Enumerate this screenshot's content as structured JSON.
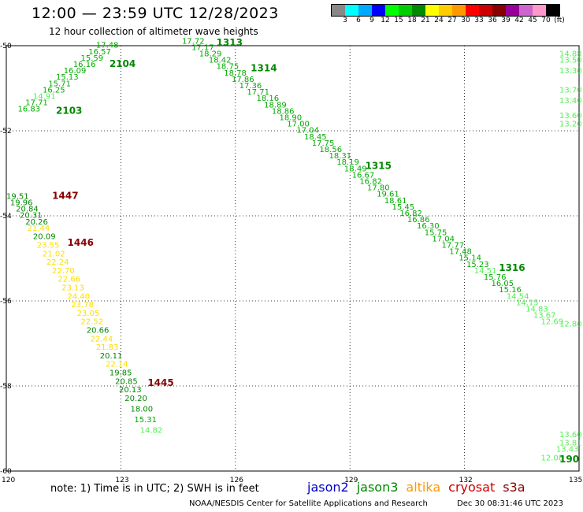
{
  "header": {
    "title": "12:00 — 23:59 UTC 12/28/2023",
    "subtitle": "12 hour collection of altimeter wave heights"
  },
  "legend": {
    "labels": [
      "3",
      "6",
      "9",
      "12",
      "15",
      "18",
      "21",
      "24",
      "27",
      "30",
      "33",
      "36",
      "39",
      "42",
      "45",
      "70",
      "(ft)"
    ],
    "colors": [
      "#888888",
      "#00ffff",
      "#00aaff",
      "#0000ff",
      "#00ff00",
      "#00cc00",
      "#008800",
      "#ffff00",
      "#ffcc00",
      "#ff9900",
      "#ff0000",
      "#cc0000",
      "#880000",
      "#990099",
      "#cc66cc",
      "#ff99cc",
      "#000000"
    ]
  },
  "footer": {
    "note": "note:  1) Time is in UTC;  2) SWH is in feet",
    "satellites": [
      {
        "name": "jason2",
        "color": "#0000cc"
      },
      {
        "name": "jason3",
        "color": "#008800"
      },
      {
        "name": "altika",
        "color": "#ff9900"
      },
      {
        "name": "cryosat",
        "color": "#cc0000"
      },
      {
        "name": "s3a",
        "color": "#880000"
      }
    ],
    "credit": "NOAA/NESDIS Center for Satellite Applications and Research",
    "timestamp": "Dec 30 08:31:46 UTC 2023"
  },
  "chart_data": {
    "type": "scatter",
    "xlim": [
      120,
      135
    ],
    "ylim": [
      -60,
      -50
    ],
    "x_ticks": [
      120,
      123,
      126,
      129,
      132,
      135
    ],
    "y_ticks": [
      -50,
      -52,
      -54,
      -56,
      -58,
      -60
    ],
    "grid": true,
    "pass_labels": [
      {
        "label": "2103",
        "lon": 121.3,
        "lat": -51.6,
        "color": "#008800"
      },
      {
        "label": "2104",
        "lon": 122.7,
        "lat": -50.5,
        "color": "#008800"
      },
      {
        "label": "1313",
        "lon": 125.5,
        "lat": -50.0,
        "color": "#008800"
      },
      {
        "label": "1314",
        "lon": 126.4,
        "lat": -50.6,
        "color": "#008800"
      },
      {
        "label": "1315",
        "lon": 129.4,
        "lat": -52.9,
        "color": "#008800"
      },
      {
        "label": "1316",
        "lon": 132.9,
        "lat": -55.3,
        "color": "#008800"
      },
      {
        "label": "1447",
        "lon": 121.2,
        "lat": -53.6,
        "color": "#880000"
      },
      {
        "label": "1446",
        "lon": 121.6,
        "lat": -54.7,
        "color": "#880000"
      },
      {
        "label": "1445",
        "lon": 123.7,
        "lat": -58.0,
        "color": "#880000"
      },
      {
        "label": "190",
        "lon": 134.7,
        "lat": -59.8,
        "color": "#008800"
      }
    ],
    "series": [
      {
        "name": "2103-2104",
        "points": [
          {
            "lon": 120.3,
            "lat": -51.55,
            "swh": 16.83,
            "color": "#00aa00"
          },
          {
            "lon": 120.5,
            "lat": -51.4,
            "swh": 17.71,
            "color": "#00aa00"
          },
          {
            "lon": 120.7,
            "lat": -51.25,
            "swh": 14.91,
            "color": "#55ee55"
          },
          {
            "lon": 120.95,
            "lat": -51.1,
            "swh": 16.25,
            "color": "#00aa00"
          },
          {
            "lon": 121.1,
            "lat": -50.95,
            "swh": 15.71,
            "color": "#00aa00"
          },
          {
            "lon": 121.3,
            "lat": -50.8,
            "swh": 15.13,
            "color": "#00aa00"
          },
          {
            "lon": 121.5,
            "lat": -50.65,
            "swh": 16.09,
            "color": "#00aa00"
          },
          {
            "lon": 121.75,
            "lat": -50.5,
            "swh": 16.16,
            "color": "#00aa00"
          },
          {
            "lon": 121.95,
            "lat": -50.35,
            "swh": 15.59,
            "color": "#00aa00"
          },
          {
            "lon": 122.15,
            "lat": -50.2,
            "swh": 16.57,
            "color": "#00aa00"
          },
          {
            "lon": 122.35,
            "lat": -50.05,
            "swh": 17.48,
            "color": "#00aa00"
          }
        ]
      },
      {
        "name": "1313-1316",
        "points": [
          {
            "lon": 124.6,
            "lat": -49.95,
            "swh": 17.72,
            "color": "#00aa00"
          },
          {
            "lon": 124.85,
            "lat": -50.1,
            "swh": 17.17,
            "color": "#00aa00"
          },
          {
            "lon": 125.05,
            "lat": -50.25,
            "swh": 18.29,
            "color": "#00aa00"
          },
          {
            "lon": 125.3,
            "lat": -50.4,
            "swh": 18.42,
            "color": "#00aa00"
          },
          {
            "lon": 125.5,
            "lat": -50.55,
            "swh": 18.75,
            "color": "#00aa00"
          },
          {
            "lon": 125.7,
            "lat": -50.7,
            "swh": 18.78,
            "color": "#00aa00"
          },
          {
            "lon": 125.9,
            "lat": -50.85,
            "swh": 17.86,
            "color": "#00aa00"
          },
          {
            "lon": 126.1,
            "lat": -51.0,
            "swh": 17.36,
            "color": "#00aa00"
          },
          {
            "lon": 126.3,
            "lat": -51.15,
            "swh": 17.71,
            "color": "#00aa00"
          },
          {
            "lon": 126.55,
            "lat": -51.3,
            "swh": 18.16,
            "color": "#00aa00"
          },
          {
            "lon": 126.75,
            "lat": -51.45,
            "swh": 18.89,
            "color": "#00aa00"
          },
          {
            "lon": 126.95,
            "lat": -51.6,
            "swh": 18.86,
            "color": "#00aa00"
          },
          {
            "lon": 127.15,
            "lat": -51.75,
            "swh": 18.9,
            "color": "#00aa00"
          },
          {
            "lon": 127.35,
            "lat": -51.9,
            "swh": 17.0,
            "color": "#00aa00"
          },
          {
            "lon": 127.6,
            "lat": -52.05,
            "swh": 17.04,
            "color": "#00aa00"
          },
          {
            "lon": 127.8,
            "lat": -52.2,
            "swh": 18.45,
            "color": "#00aa00"
          },
          {
            "lon": 128.0,
            "lat": -52.35,
            "swh": 17.75,
            "color": "#00aa00"
          },
          {
            "lon": 128.2,
            "lat": -52.5,
            "swh": 18.56,
            "color": "#00aa00"
          },
          {
            "lon": 128.45,
            "lat": -52.65,
            "swh": 18.31,
            "color": "#00aa00"
          },
          {
            "lon": 128.65,
            "lat": -52.8,
            "swh": 18.19,
            "color": "#00aa00"
          },
          {
            "lon": 128.85,
            "lat": -52.95,
            "swh": 18.49,
            "color": "#00aa00"
          },
          {
            "lon": 129.05,
            "lat": -53.1,
            "swh": 16.67,
            "color": "#00aa00"
          },
          {
            "lon": 129.25,
            "lat": -53.25,
            "swh": 16.82,
            "color": "#00aa00"
          },
          {
            "lon": 129.45,
            "lat": -53.4,
            "swh": 17.8,
            "color": "#00aa00"
          },
          {
            "lon": 129.7,
            "lat": -53.55,
            "swh": 19.61,
            "color": "#00aa00"
          },
          {
            "lon": 129.9,
            "lat": -53.7,
            "swh": 18.61,
            "color": "#00aa00"
          },
          {
            "lon": 130.1,
            "lat": -53.85,
            "swh": 15.45,
            "color": "#00aa00"
          },
          {
            "lon": 130.3,
            "lat": -54.0,
            "swh": 16.82,
            "color": "#00aa00"
          },
          {
            "lon": 130.5,
            "lat": -54.15,
            "swh": 16.86,
            "color": "#00aa00"
          },
          {
            "lon": 130.75,
            "lat": -54.3,
            "swh": 16.3,
            "color": "#00aa00"
          },
          {
            "lon": 130.95,
            "lat": -54.45,
            "swh": 15.75,
            "color": "#00aa00"
          },
          {
            "lon": 131.15,
            "lat": -54.6,
            "swh": 17.04,
            "color": "#00aa00"
          },
          {
            "lon": 131.4,
            "lat": -54.75,
            "swh": 17.77,
            "color": "#00aa00"
          },
          {
            "lon": 131.6,
            "lat": -54.9,
            "swh": 17.48,
            "color": "#00aa00"
          },
          {
            "lon": 131.85,
            "lat": -55.05,
            "swh": 15.14,
            "color": "#00aa00"
          },
          {
            "lon": 132.05,
            "lat": -55.2,
            "swh": 15.23,
            "color": "#00aa00"
          },
          {
            "lon": 132.25,
            "lat": -55.35,
            "swh": 14.51,
            "color": "#55ee55"
          },
          {
            "lon": 132.5,
            "lat": -55.5,
            "swh": 15.76,
            "color": "#00aa00"
          },
          {
            "lon": 132.7,
            "lat": -55.65,
            "swh": 16.05,
            "color": "#00aa00"
          },
          {
            "lon": 132.9,
            "lat": -55.8,
            "swh": 15.16,
            "color": "#00aa00"
          },
          {
            "lon": 133.1,
            "lat": -55.95,
            "swh": 14.54,
            "color": "#55ee55"
          },
          {
            "lon": 133.35,
            "lat": -56.1,
            "swh": 14.15,
            "color": "#55ee55"
          },
          {
            "lon": 133.6,
            "lat": -56.25,
            "swh": 14.83,
            "color": "#55ee55"
          },
          {
            "lon": 133.8,
            "lat": -56.4,
            "swh": 13.67,
            "color": "#55ee55"
          },
          {
            "lon": 134.0,
            "lat": -56.55,
            "swh": 12.69,
            "color": "#55ee55"
          }
        ]
      },
      {
        "name": "1445-1447",
        "points": [
          {
            "lon": 120.0,
            "lat": -53.6,
            "swh": 19.51,
            "color": "#008800"
          },
          {
            "lon": 120.1,
            "lat": -53.75,
            "swh": 19.96,
            "color": "#008800"
          },
          {
            "lon": 120.25,
            "lat": -53.9,
            "swh": 20.84,
            "color": "#008800"
          },
          {
            "lon": 120.35,
            "lat": -54.05,
            "swh": 20.31,
            "color": "#008800"
          },
          {
            "lon": 120.5,
            "lat": -54.2,
            "swh": 20.26,
            "color": "#008800"
          },
          {
            "lon": 120.55,
            "lat": -54.35,
            "swh": 21.44,
            "color": "#ffdd00"
          },
          {
            "lon": 120.7,
            "lat": -54.55,
            "swh": 20.09,
            "color": "#008800"
          },
          {
            "lon": 120.8,
            "lat": -54.75,
            "swh": 23.55,
            "color": "#ffdd00"
          },
          {
            "lon": 120.95,
            "lat": -54.95,
            "swh": 21.02,
            "color": "#ffdd00"
          },
          {
            "lon": 121.05,
            "lat": -55.15,
            "swh": 22.24,
            "color": "#ffdd00"
          },
          {
            "lon": 121.2,
            "lat": -55.35,
            "swh": 22.7,
            "color": "#ffdd00"
          },
          {
            "lon": 121.35,
            "lat": -55.55,
            "swh": 22.66,
            "color": "#ffdd00"
          },
          {
            "lon": 121.45,
            "lat": -55.75,
            "swh": 23.13,
            "color": "#ffdd00"
          },
          {
            "lon": 121.6,
            "lat": -55.95,
            "swh": 24.4,
            "color": "#ffdd00"
          },
          {
            "lon": 121.7,
            "lat": -56.15,
            "swh": 23.78,
            "color": "#ffdd00"
          },
          {
            "lon": 121.85,
            "lat": -56.35,
            "swh": 23.05,
            "color": "#ffdd00"
          },
          {
            "lon": 121.95,
            "lat": -56.55,
            "swh": 22.52,
            "color": "#ffdd00"
          },
          {
            "lon": 122.1,
            "lat": -56.75,
            "swh": 20.66,
            "color": "#008800"
          },
          {
            "lon": 122.2,
            "lat": -56.95,
            "swh": 22.44,
            "color": "#ffdd00"
          },
          {
            "lon": 122.35,
            "lat": -57.15,
            "swh": 21.83,
            "color": "#ffdd00"
          },
          {
            "lon": 122.45,
            "lat": -57.35,
            "swh": 20.11,
            "color": "#008800"
          },
          {
            "lon": 122.6,
            "lat": -57.55,
            "swh": 22.14,
            "color": "#ffdd00"
          },
          {
            "lon": 122.7,
            "lat": -57.75,
            "swh": 19.85,
            "color": "#008800"
          },
          {
            "lon": 122.85,
            "lat": -57.95,
            "swh": 20.85,
            "color": "#008800"
          },
          {
            "lon": 122.95,
            "lat": -58.15,
            "swh": 20.13,
            "color": "#008800"
          },
          {
            "lon": 123.1,
            "lat": -58.35,
            "swh": 20.2,
            "color": "#008800"
          },
          {
            "lon": 123.25,
            "lat": -58.6,
            "swh": 18.0,
            "color": "#008800"
          },
          {
            "lon": 123.35,
            "lat": -58.85,
            "swh": 15.31,
            "color": "#00aa00"
          },
          {
            "lon": 123.5,
            "lat": -59.1,
            "swh": 14.82,
            "color": "#55ee55"
          }
        ]
      },
      {
        "name": "edge-east",
        "points": [
          {
            "lon": 134.75,
            "lat": -50.25,
            "swh": 14.88,
            "color": "#55ee55"
          },
          {
            "lon": 134.85,
            "lat": -50.4,
            "swh": 13.5,
            "color": "#55ee55"
          },
          {
            "lon": 134.8,
            "lat": -50.65,
            "swh": 13.3,
            "color": "#55ee55"
          },
          {
            "lon": 134.85,
            "lat": -51.1,
            "swh": 13.7,
            "color": "#55ee55"
          },
          {
            "lon": 134.85,
            "lat": -51.35,
            "swh": 13.4,
            "color": "#55ee55"
          },
          {
            "lon": 134.85,
            "lat": -51.7,
            "swh": 13.6,
            "color": "#55ee55"
          },
          {
            "lon": 134.85,
            "lat": -51.9,
            "swh": 13.2,
            "color": "#55ee55"
          },
          {
            "lon": 134.8,
            "lat": -56.6,
            "swh": 12.8,
            "color": "#55ee55"
          },
          {
            "lon": 134.6,
            "lat": -59.4,
            "swh": 13.81,
            "color": "#55ee55"
          },
          {
            "lon": 134.4,
            "lat": -59.55,
            "swh": 13.43,
            "color": "#55ee55"
          },
          {
            "lon": 134.0,
            "lat": -59.75,
            "swh": 12.08,
            "color": "#55ee55"
          },
          {
            "lon": 134.8,
            "lat": -59.2,
            "swh": 13.6,
            "color": "#55ee55"
          }
        ]
      }
    ]
  }
}
